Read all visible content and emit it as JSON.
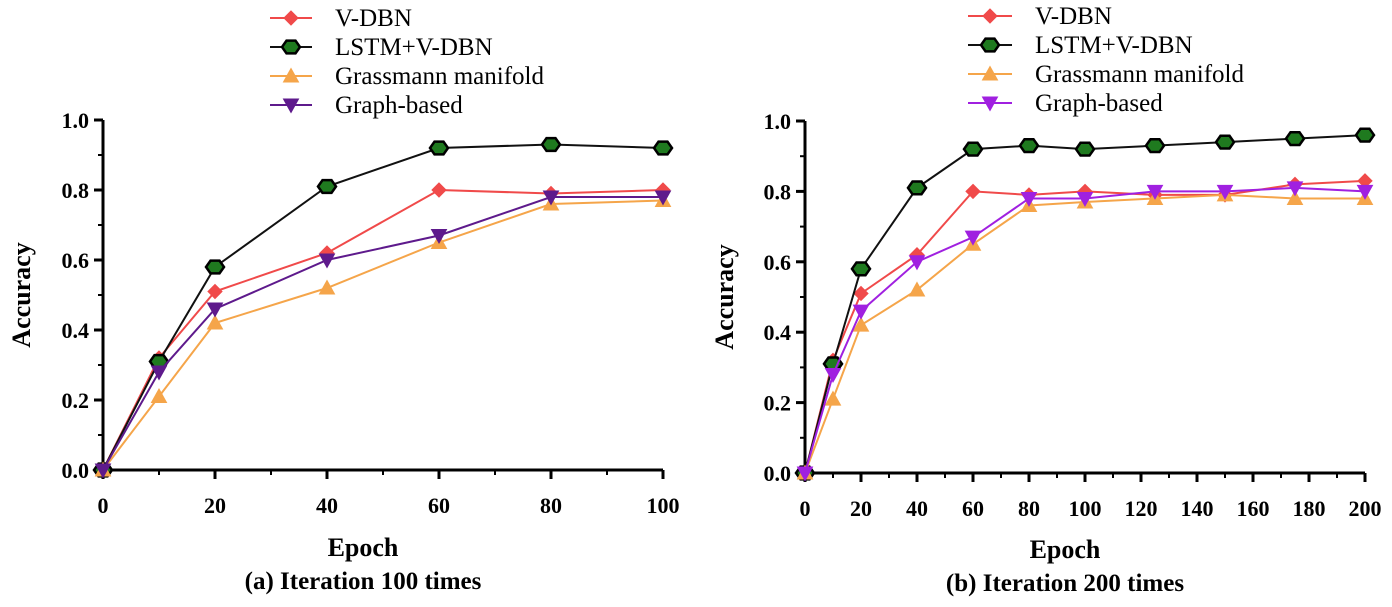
{
  "chart_data": [
    {
      "type": "line",
      "title": "",
      "caption": "(a) Iteration 100 times",
      "xlabel": "Epoch",
      "ylabel": "Accuracy",
      "xlim": [
        0,
        100
      ],
      "ylim": [
        0,
        1.0
      ],
      "xticks": [
        "0",
        "20",
        "40",
        "60",
        "80",
        "100"
      ],
      "yticks": [
        "0.0",
        "0.2",
        "0.4",
        "0.6",
        "0.8",
        "1.0"
      ],
      "grid": false,
      "legend": "top",
      "series": [
        {
          "name": "V-DBN",
          "color": "#f04a4a",
          "marker": "diamond",
          "points": [
            [
              0,
              0
            ],
            [
              10,
              0.32
            ],
            [
              20,
              0.51
            ],
            [
              40,
              0.62
            ],
            [
              60,
              0.8
            ],
            [
              80,
              0.79
            ],
            [
              100,
              0.8
            ]
          ]
        },
        {
          "name": "LSTM+V-DBN",
          "color": "#111111",
          "marker": "hexagon",
          "points": [
            [
              0,
              0
            ],
            [
              10,
              0.31
            ],
            [
              20,
              0.58
            ],
            [
              40,
              0.81
            ],
            [
              60,
              0.92
            ],
            [
              80,
              0.93
            ],
            [
              100,
              0.92
            ]
          ]
        },
        {
          "name": "Grassmann manifold",
          "color": "#f5a54a",
          "marker": "triangle-up",
          "points": [
            [
              0,
              0
            ],
            [
              10,
              0.21
            ],
            [
              20,
              0.42
            ],
            [
              40,
              0.52
            ],
            [
              60,
              0.65
            ],
            [
              80,
              0.76
            ],
            [
              100,
              0.77
            ]
          ]
        },
        {
          "name": "Graph-based",
          "color": "#5e1a8c",
          "marker": "triangle-down",
          "points": [
            [
              0,
              0
            ],
            [
              10,
              0.28
            ],
            [
              20,
              0.46
            ],
            [
              40,
              0.6
            ],
            [
              60,
              0.67
            ],
            [
              80,
              0.78
            ],
            [
              100,
              0.78
            ]
          ]
        }
      ]
    },
    {
      "type": "line",
      "title": "",
      "caption": "(b) Iteration 200 times",
      "xlabel": "Epoch",
      "ylabel": "Accuracy",
      "xlim": [
        0,
        200
      ],
      "ylim": [
        0,
        1.0
      ],
      "xticks": [
        "0",
        "20",
        "40",
        "60",
        "80",
        "100",
        "120",
        "140",
        "160",
        "180",
        "200"
      ],
      "yticks": [
        "0.0",
        "0.2",
        "0.4",
        "0.6",
        "0.8",
        "1.0"
      ],
      "grid": false,
      "legend": "top",
      "series": [
        {
          "name": "V-DBN",
          "color": "#f04a4a",
          "marker": "diamond",
          "points": [
            [
              0,
              0
            ],
            [
              10,
              0.32
            ],
            [
              20,
              0.51
            ],
            [
              40,
              0.62
            ],
            [
              60,
              0.8
            ],
            [
              80,
              0.79
            ],
            [
              100,
              0.8
            ],
            [
              125,
              0.79
            ],
            [
              150,
              0.79
            ],
            [
              175,
              0.82
            ],
            [
              200,
              0.83
            ]
          ]
        },
        {
          "name": "LSTM+V-DBN",
          "color": "#111111",
          "marker": "hexagon",
          "points": [
            [
              0,
              0
            ],
            [
              10,
              0.31
            ],
            [
              20,
              0.58
            ],
            [
              40,
              0.81
            ],
            [
              60,
              0.92
            ],
            [
              80,
              0.93
            ],
            [
              100,
              0.92
            ],
            [
              125,
              0.93
            ],
            [
              150,
              0.94
            ],
            [
              175,
              0.95
            ],
            [
              200,
              0.96
            ]
          ]
        },
        {
          "name": "Grassmann manifold",
          "color": "#f5a54a",
          "marker": "triangle-up",
          "points": [
            [
              0,
              0
            ],
            [
              10,
              0.21
            ],
            [
              20,
              0.42
            ],
            [
              40,
              0.52
            ],
            [
              60,
              0.65
            ],
            [
              80,
              0.76
            ],
            [
              100,
              0.77
            ],
            [
              125,
              0.78
            ],
            [
              150,
              0.79
            ],
            [
              175,
              0.78
            ],
            [
              200,
              0.78
            ]
          ]
        },
        {
          "name": "Graph-based",
          "color": "#a020e0",
          "marker": "triangle-down",
          "points": [
            [
              0,
              0
            ],
            [
              10,
              0.28
            ],
            [
              20,
              0.46
            ],
            [
              40,
              0.6
            ],
            [
              60,
              0.67
            ],
            [
              80,
              0.78
            ],
            [
              100,
              0.78
            ],
            [
              125,
              0.8
            ],
            [
              150,
              0.8
            ],
            [
              175,
              0.81
            ],
            [
              200,
              0.8
            ]
          ]
        }
      ]
    }
  ]
}
